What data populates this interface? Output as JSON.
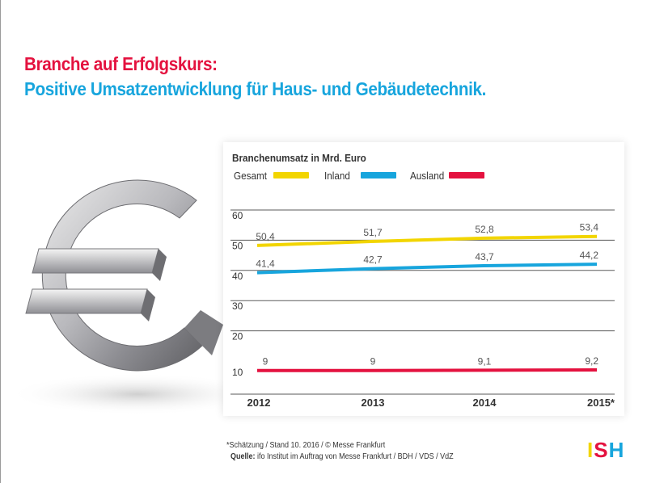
{
  "heading": {
    "line1": "Branche auf Erfolgskurs:",
    "line2": "Positive Umsatzentwicklung für Haus- und Gebäudetechnik."
  },
  "colors": {
    "red": "#e4123f",
    "blue": "#17a5dd",
    "yellow": "#f2d500"
  },
  "chart_data": {
    "type": "line",
    "title": "Branchenumsatz in Mrd. Euro",
    "categories": [
      "2012",
      "2013",
      "2014",
      "2015*"
    ],
    "yticks": [
      "10",
      "20",
      "30",
      "40",
      "50",
      "60"
    ],
    "ylim": [
      10,
      60
    ],
    "grid": true,
    "legend_position": "top-left",
    "series": [
      {
        "name": "Gesamt",
        "color": "#f2d500",
        "values": [
          50.4,
          51.7,
          52.8,
          53.4
        ],
        "labels": [
          "50,4",
          "51,7",
          "52,8",
          "53,4"
        ]
      },
      {
        "name": "Inland",
        "color": "#17a5dd",
        "values": [
          41.4,
          42.7,
          43.7,
          44.2
        ],
        "labels": [
          "41,4",
          "42,7",
          "43,7",
          "44,2"
        ]
      },
      {
        "name": "Ausland",
        "color": "#e4123f",
        "values": [
          9,
          9,
          9.1,
          9.2
        ],
        "labels": [
          "9",
          "9",
          "9,1",
          "9,2"
        ]
      }
    ]
  },
  "footnote": {
    "line1": "*Schätzung / Stand 10. 2016 / © Messe Frankfurt",
    "source_label": "Quelle:",
    "source_text": "ifo Institut im Auftrag von Messe Frankfurt / BDH / VDS / VdZ"
  },
  "logo": {
    "letters": [
      "I",
      "S",
      "H"
    ],
    "colors": [
      "#f2d500",
      "#e4123f",
      "#17a5dd"
    ]
  }
}
